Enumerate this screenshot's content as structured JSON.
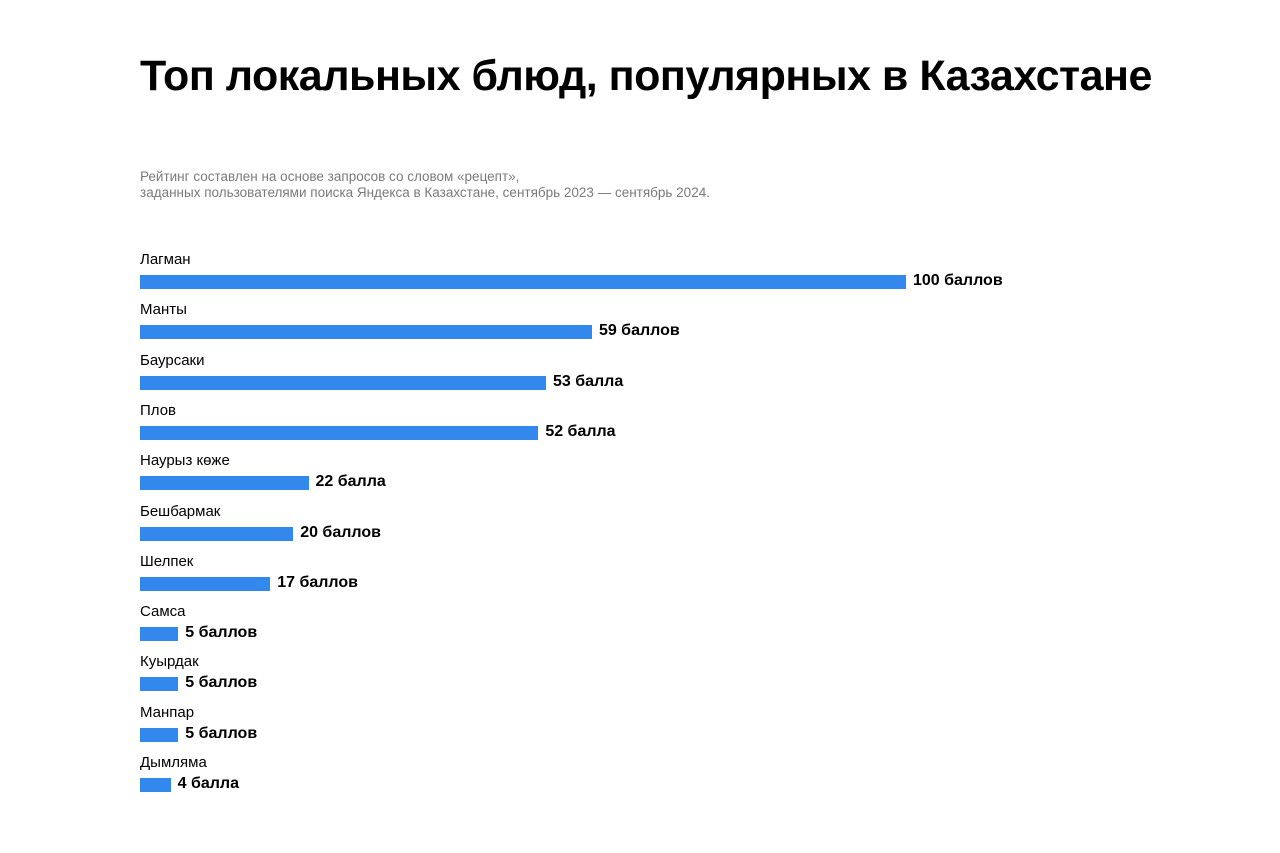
{
  "chart_data": {
    "type": "bar",
    "orientation": "horizontal",
    "title": "Топ локальных блюд, популярных в Казахстане",
    "subtitle": [
      "Рейтинг составлен на основе запросов со словом «рецепт»,",
      "заданных пользователями поиска Яндекса в Казахстане, сентябрь 2023 — сентябрь 2024."
    ],
    "categories": [
      "Лагман",
      "Манты",
      "Баурсаки",
      "Плов",
      "Наурыз көже",
      "Бешбармак",
      "Шелпек",
      "Самса",
      "Куырдак",
      "Манпар",
      "Дымляма"
    ],
    "values": [
      100,
      59,
      53,
      52,
      22,
      20,
      17,
      5,
      5,
      5,
      4
    ],
    "value_labels": [
      "100 баллов",
      "59 баллов",
      "53 балла",
      "52 балла",
      "22 балла",
      "20 баллов",
      "17 баллов",
      "5 баллов",
      "5 баллов",
      "5 баллов",
      "4 балла"
    ],
    "xlim": [
      0,
      100
    ],
    "grid": false,
    "bar_color": "#3388ee"
  }
}
